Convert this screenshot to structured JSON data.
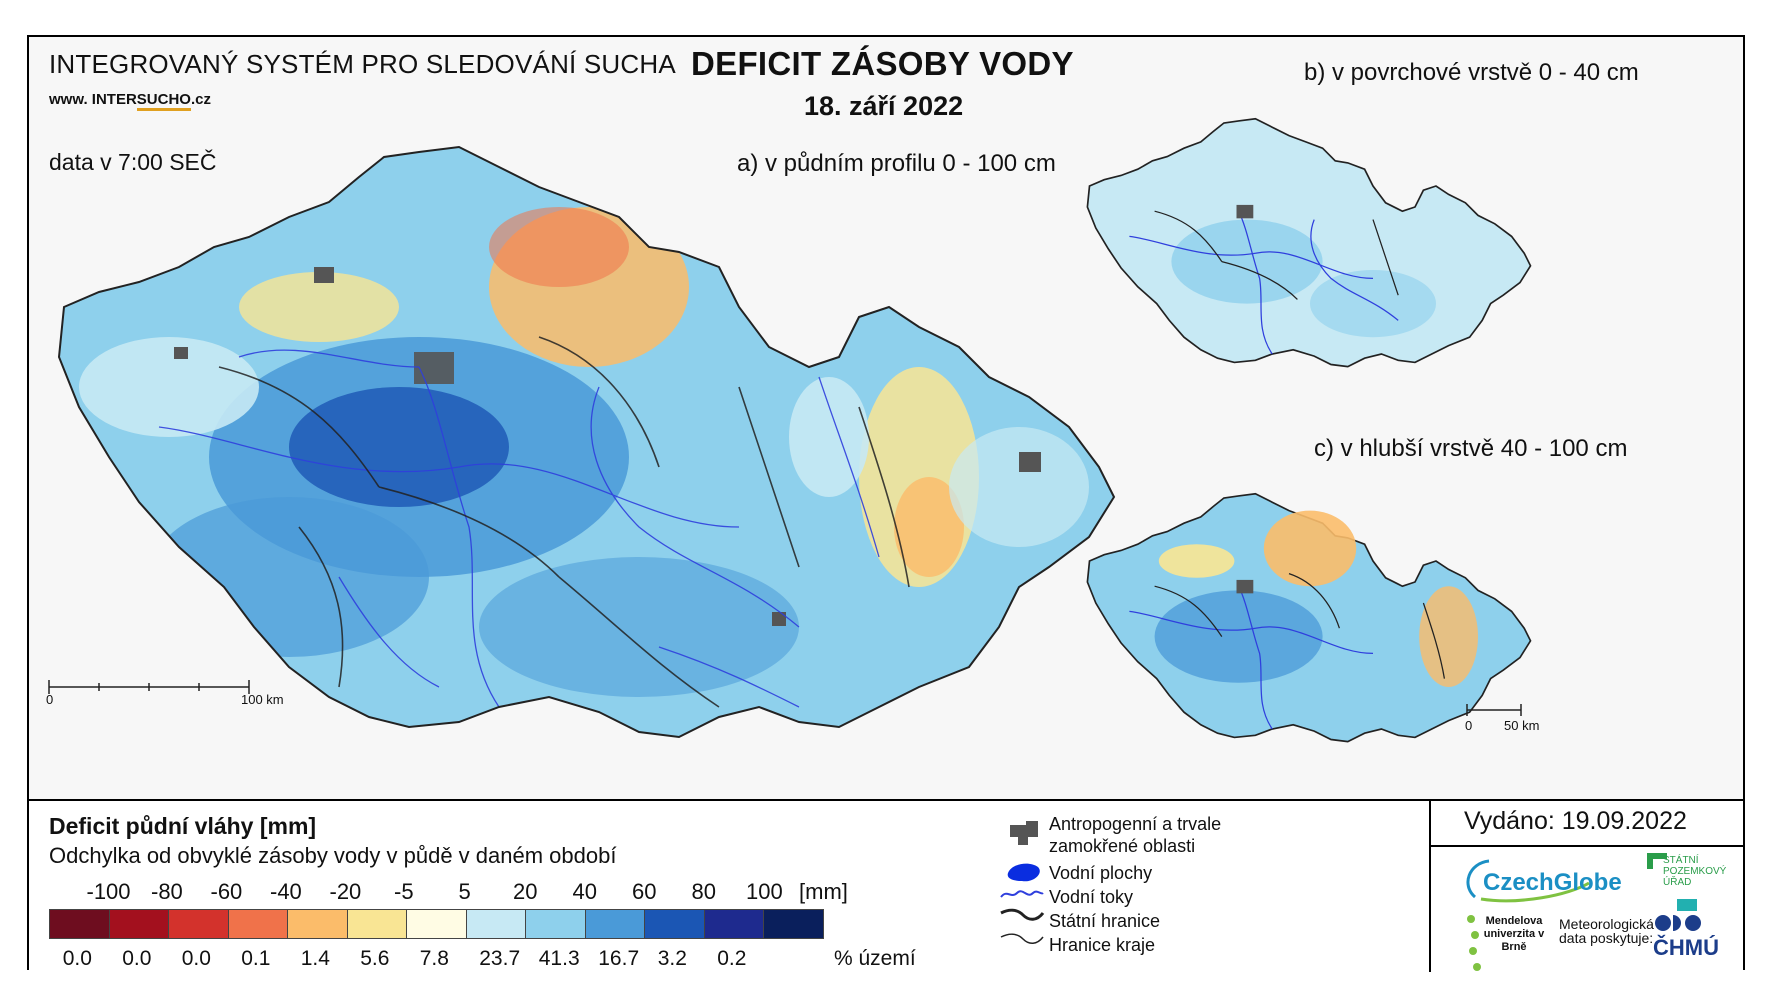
{
  "header": {
    "system_title": "INTEGROVANÝ SYSTÉM PRO SLEDOVÁNÍ SUCHA",
    "website_prefix": "www. INTER",
    "website_highlight": "SUCHO",
    "website_suffix": ".cz",
    "data_time": "data v 7:00 SEČ",
    "main_title": "DEFICIT ZÁSOBY VODY",
    "date": "18. září 2022",
    "map_a_title": "a) v půdním profilu 0 - 100 cm",
    "map_b_title": "b) v povrchové vrstvě 0 - 40 cm",
    "map_c_title": "c) v hlubší vrstvě 40 - 100 cm"
  },
  "scales": {
    "main": {
      "zero": "0",
      "end": "100 km"
    },
    "small": {
      "zero": "0",
      "end": "50 km"
    }
  },
  "legend": {
    "title": "Deficit půdní vláhy  [mm]",
    "subtitle": "Odchylka od obvyklé zásoby vody v půdě v daném období",
    "ticks": [
      "-100",
      "-80",
      "-60",
      "-40",
      "-20",
      "-5",
      "5",
      "20",
      "40",
      "60",
      "80",
      "100"
    ],
    "unit": "[mm]",
    "colors": [
      "#6e0d1f",
      "#a3101e",
      "#d3322c",
      "#f0724a",
      "#fbbc6a",
      "#f9e594",
      "#fffce4",
      "#c7e9f4",
      "#8ed0ec",
      "#4a9ad8",
      "#1b56b4",
      "#1e2a8e",
      "#0a1f5c"
    ],
    "percentages": [
      "0.0",
      "0.0",
      "0.0",
      "0.1",
      "1.4",
      "5.6",
      "7.8",
      "23.7",
      "41.3",
      "16.7",
      "3.2",
      "0.2"
    ],
    "percent_label": "% území"
  },
  "symbols": {
    "anthropogenic": "Antropogenní a trvale zamokřené oblasti",
    "water_bodies": "Vodní plochy",
    "rivers": "Vodní toky",
    "state_border": "Státní hranice",
    "region_border": "Hranice kraje"
  },
  "issued": "Vydáno: 19.09.2022",
  "logos": {
    "czechglobe": "CzechGlobe",
    "spu": "STÁTNÍ POZEMKOVÝ ÚŘAD",
    "mendel": "Mendelova univerzita v Brně",
    "meteo": "Meteorologická data poskytuje:",
    "chmu": "ČHMÚ"
  }
}
